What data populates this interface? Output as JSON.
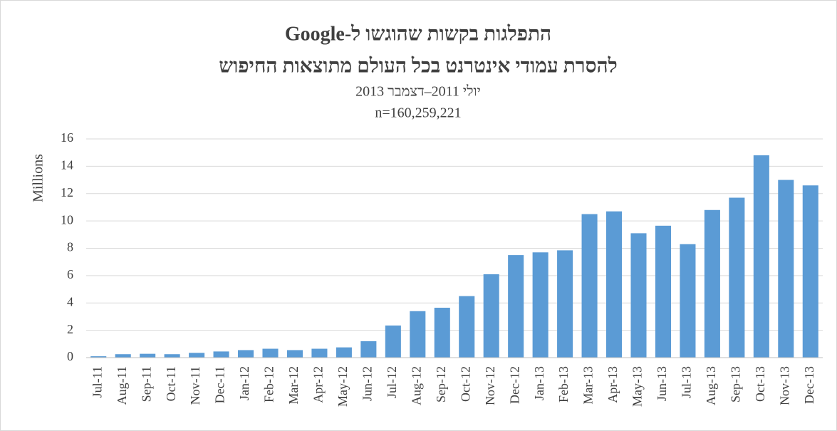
{
  "chart_data": {
    "type": "bar",
    "title": "התפלגות בקשות שהוגשו ל-Google",
    "title_line2": "להסרת עמודי אינטרנט בכל העולם מתוצאות החיפוש",
    "subtitle": "יולי 2011–דצמבר 2013",
    "subtitle2": "n=160,259,221",
    "y_axis_label": "Millions",
    "categories": [
      "Jul-11",
      "Aug-11",
      "Sep-11",
      "Oct-11",
      "Nov-11",
      "Dec-11",
      "Jan-12",
      "Feb-12",
      "Mar-12",
      "Apr-12",
      "May-12",
      "Jun-12",
      "Jul-12",
      "Aug-12",
      "Sep-12",
      "Oct-12",
      "Nov-12",
      "Dec-12",
      "Jan-13",
      "Feb-13",
      "Mar-13",
      "Apr-13",
      "May-13",
      "Jun-13",
      "Jul-13",
      "Aug-13",
      "Sep-13",
      "Oct-13",
      "Nov-13",
      "Dec-13"
    ],
    "values": [
      0.1,
      0.25,
      0.28,
      0.25,
      0.35,
      0.45,
      0.55,
      0.65,
      0.55,
      0.65,
      0.75,
      1.2,
      2.35,
      3.4,
      3.65,
      4.5,
      6.1,
      7.5,
      7.7,
      7.85,
      10.5,
      10.7,
      9.1,
      9.65,
      8.3,
      10.8,
      11.7,
      14.8,
      13.0,
      12.6
    ],
    "color": "#5b9bd5",
    "ylim": [
      0,
      16
    ],
    "yticks": [
      0,
      2,
      4,
      6,
      8,
      10,
      12,
      14,
      16
    ],
    "grid": true
  }
}
